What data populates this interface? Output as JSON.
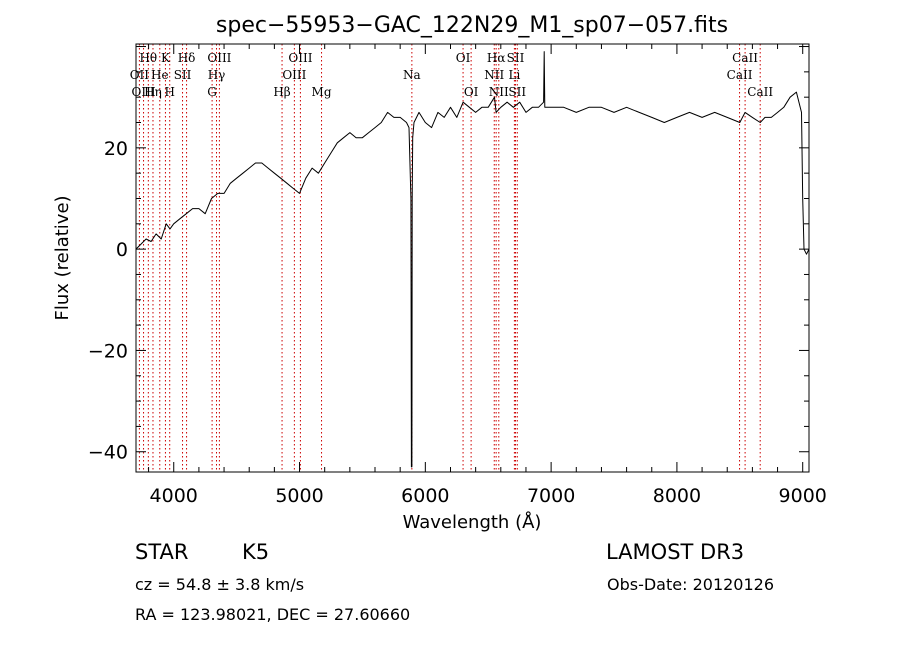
{
  "chart_data": {
    "type": "line",
    "title": "spec−55953−GAC_122N29_M1_sp07−057.fits",
    "xlabel": "Wavelength (Å)",
    "ylabel": "Flux (relative)",
    "xlim": [
      3700,
      9050
    ],
    "ylim": [
      -44,
      40.5
    ],
    "xticks": [
      {
        "value": 4000,
        "label": "4000"
      },
      {
        "value": 5000,
        "label": "5000"
      },
      {
        "value": 6000,
        "label": "6000"
      },
      {
        "value": 7000,
        "label": "7000"
      },
      {
        "value": 8000,
        "label": "8000"
      },
      {
        "value": 9000,
        "label": "9000"
      }
    ],
    "yticks": [
      {
        "value": 20,
        "label": "20"
      },
      {
        "value": 0,
        "label": "0"
      },
      {
        "value": -20,
        "label": "−20"
      },
      {
        "value": -40,
        "label": "−40"
      }
    ],
    "series": [
      {
        "name": "spectrum",
        "x": [
          3700,
          3740,
          3780,
          3820,
          3860,
          3900,
          3940,
          3970,
          4000,
          4050,
          4100,
          4150,
          4200,
          4250,
          4300,
          4350,
          4400,
          4450,
          4500,
          4550,
          4600,
          4650,
          4700,
          4750,
          4800,
          4850,
          4900,
          4950,
          5000,
          5050,
          5100,
          5150,
          5200,
          5250,
          5300,
          5350,
          5400,
          5450,
          5500,
          5550,
          5600,
          5650,
          5700,
          5750,
          5800,
          5850,
          5870,
          5885,
          5889,
          5893,
          5896,
          5900,
          5910,
          5950,
          6000,
          6050,
          6100,
          6150,
          6200,
          6250,
          6300,
          6350,
          6400,
          6450,
          6500,
          6550,
          6563,
          6600,
          6650,
          6700,
          6750,
          6800,
          6850,
          6900,
          6940,
          6945,
          6950,
          7000,
          7100,
          7200,
          7300,
          7400,
          7500,
          7600,
          7700,
          7800,
          7900,
          8000,
          8100,
          8200,
          8300,
          8400,
          8500,
          8542,
          8600,
          8662,
          8700,
          8750,
          8800,
          8850,
          8900,
          8950,
          8990,
          9000,
          9010,
          9030,
          9050
        ],
        "y": [
          0,
          1,
          2,
          1.5,
          3,
          2,
          5,
          4,
          5,
          6,
          7,
          8,
          8,
          7,
          10,
          11,
          11,
          13,
          14,
          15,
          16,
          17,
          17,
          16,
          15,
          14,
          13,
          12,
          11,
          14,
          16,
          15,
          17,
          19,
          21,
          22,
          23,
          22,
          22,
          23,
          24,
          25,
          27,
          26,
          26,
          25,
          24,
          10,
          -43,
          -43,
          10,
          22,
          25,
          27,
          25,
          24,
          27,
          26,
          28,
          26,
          29,
          28,
          27,
          28,
          28,
          30,
          27,
          28,
          29,
          28,
          29,
          27,
          28,
          28,
          29,
          39,
          28,
          28,
          28,
          27,
          28,
          28,
          27,
          28,
          27,
          26,
          25,
          26,
          27,
          26,
          27,
          26,
          25,
          27,
          26,
          25,
          26,
          26,
          27,
          28,
          30,
          31,
          27,
          10,
          0,
          -1,
          0
        ]
      }
    ],
    "lines": [
      {
        "name": "Hθ",
        "wave": 3798,
        "row": 0
      },
      {
        "name": "OII",
        "wave": 3727,
        "row": 1
      },
      {
        "name": "OIII",
        "wave": 3760,
        "row": 2
      },
      {
        "name": "Hη",
        "wave": 3835,
        "row": 2
      },
      {
        "name": "He",
        "wave": 3889,
        "row": 1
      },
      {
        "name": "K",
        "wave": 3934,
        "row": 0
      },
      {
        "name": "H",
        "wave": 3968,
        "row": 2
      },
      {
        "name": "SII",
        "wave": 4070,
        "row": 1
      },
      {
        "name": "Hδ",
        "wave": 4102,
        "row": 0
      },
      {
        "name": "G",
        "wave": 4305,
        "row": 2
      },
      {
        "name": "OIII",
        "wave": 4363,
        "row": 0
      },
      {
        "name": "Hγ",
        "wave": 4340,
        "row": 1
      },
      {
        "name": "Hβ",
        "wave": 4861,
        "row": 2
      },
      {
        "name": "OIII",
        "wave": 5007,
        "row": 0
      },
      {
        "name": "OIII",
        "wave": 4959,
        "row": 1
      },
      {
        "name": "Mg",
        "wave": 5175,
        "row": 2
      },
      {
        "name": "Na",
        "wave": 5893,
        "row": 1
      },
      {
        "name": "OI",
        "wave": 6300,
        "row": 0
      },
      {
        "name": "OI",
        "wave": 6364,
        "row": 2
      },
      {
        "name": "Hα",
        "wave": 6563,
        "row": 0
      },
      {
        "name": "NII",
        "wave": 6548,
        "row": 1
      },
      {
        "name": "NII",
        "wave": 6584,
        "row": 2
      },
      {
        "name": "SII",
        "wave": 6717,
        "row": 0
      },
      {
        "name": "Li",
        "wave": 6708,
        "row": 1
      },
      {
        "name": "SII",
        "wave": 6731,
        "row": 2
      },
      {
        "name": "CaII",
        "wave": 8542,
        "row": 0
      },
      {
        "name": "CaII",
        "wave": 8498,
        "row": 1
      },
      {
        "name": "CaII",
        "wave": 8662,
        "row": 2
      }
    ],
    "line_color": "#cc0000"
  },
  "info": {
    "class": "STAR",
    "subclass": "K5",
    "survey": "LAMOST DR3",
    "cz": "cz = 54.8 ± 3.8 km/s",
    "obs_date": "Obs-Date: 20120126",
    "coords": "RA = 123.98021, DEC =  27.60660"
  }
}
